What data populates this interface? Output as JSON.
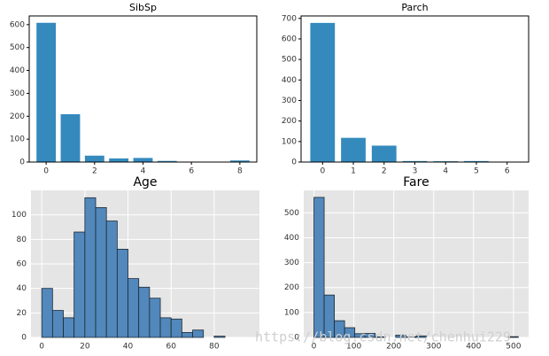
{
  "chart_data": [
    {
      "type": "bar",
      "title": "SibSp",
      "x": [
        0,
        1,
        2,
        3,
        4,
        5,
        8
      ],
      "values": [
        608,
        209,
        28,
        16,
        18,
        5,
        7
      ],
      "color": "#348abd",
      "xlim": [
        -0.7,
        8.7
      ],
      "xticks": [
        0,
        2,
        4,
        6,
        8
      ],
      "ylim": [
        0,
        638
      ],
      "yticks": [
        0,
        100,
        200,
        300,
        400,
        500,
        600
      ],
      "grid": false,
      "background": "#ffffff"
    },
    {
      "type": "bar",
      "title": "Parch",
      "x": [
        0,
        1,
        2,
        3,
        4,
        5,
        6
      ],
      "values": [
        678,
        118,
        80,
        5,
        4,
        5,
        1
      ],
      "color": "#348abd",
      "xlim": [
        -0.7,
        6.7
      ],
      "xticks": [
        0,
        1,
        2,
        3,
        4,
        5,
        6
      ],
      "ylim": [
        0,
        712
      ],
      "yticks": [
        0,
        100,
        200,
        300,
        400,
        500,
        600,
        700
      ],
      "grid": false,
      "background": "#ffffff"
    },
    {
      "type": "histogram",
      "title": "Age",
      "bins": [
        0,
        5,
        10,
        15,
        20,
        25,
        30,
        35,
        40,
        45,
        50,
        55,
        60,
        65,
        70,
        75,
        80,
        85
      ],
      "values": [
        40,
        22,
        16,
        86,
        114,
        106,
        95,
        72,
        48,
        41,
        32,
        16,
        15,
        4,
        6,
        0,
        1
      ],
      "color": "#5288bb",
      "edgecolor": "#1c2833",
      "xlim": [
        -5,
        101
      ],
      "xticks": [
        0,
        20,
        40,
        60,
        80
      ],
      "ylim": [
        0,
        120
      ],
      "yticks": [
        0,
        20,
        40,
        60,
        80,
        100
      ],
      "grid": true,
      "background": "#e5e5e5"
    },
    {
      "type": "histogram",
      "title": "Fare",
      "bins": [
        0,
        25.6,
        51.2,
        76.8,
        102.4,
        128,
        153.6,
        179.2,
        204.8,
        230.4,
        256,
        281.6,
        307.2,
        332.8,
        358.4,
        384,
        409.6,
        435.2,
        460.8,
        486.4,
        512
      ],
      "values": [
        562,
        170,
        67,
        39,
        15,
        16,
        2,
        0,
        9,
        2,
        6,
        0,
        0,
        0,
        0,
        0,
        0,
        0,
        0,
        3
      ],
      "color": "#5288bb",
      "edgecolor": "#1c2833",
      "xlim": [
        -25.6,
        538
      ],
      "xticks": [
        0,
        100,
        200,
        300,
        400,
        500
      ],
      "ylim": [
        0,
        590
      ],
      "yticks": [
        0,
        100,
        200,
        300,
        400,
        500
      ],
      "grid": true,
      "background": "#e5e5e5"
    }
  ],
  "watermark": "https://blog.csdn.net/chenhui229"
}
